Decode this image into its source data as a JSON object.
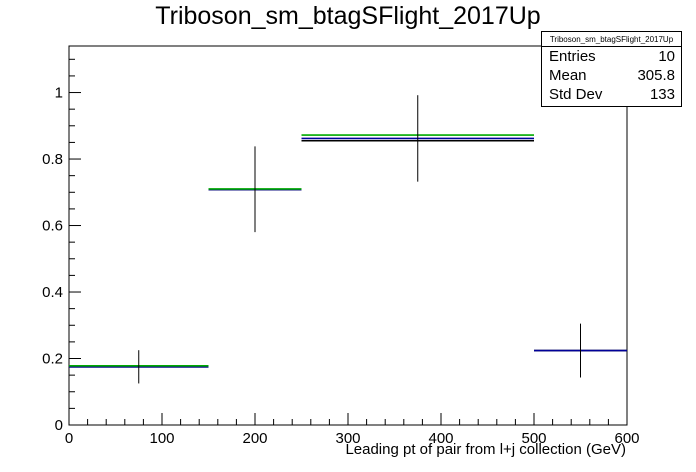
{
  "chart_data": {
    "type": "histogram",
    "title": "Triboson_sm_btagSFlight_2017Up",
    "xlabel": "Leading pt of pair from l+j collection (GeV)",
    "ylabel": "",
    "xlim": [
      0,
      600
    ],
    "ylim": [
      0,
      1.14
    ],
    "xticks": [
      0,
      100,
      200,
      300,
      400,
      500,
      600
    ],
    "yticks": [
      0,
      0.2,
      0.4,
      0.6,
      0.8,
      1
    ],
    "grid": false,
    "bins": [
      {
        "xlow": 0,
        "xhigh": 150,
        "x": 75,
        "value": 0.175,
        "err_low": 0.125,
        "err_high": 0.225
      },
      {
        "xlow": 150,
        "xhigh": 250,
        "x": 200,
        "value": 0.708,
        "err_low": 0.58,
        "err_high": 0.838
      },
      {
        "xlow": 250,
        "xhigh": 500,
        "x": 375,
        "value": 0.862,
        "err_low": 0.732,
        "err_high": 0.992
      },
      {
        "xlow": 500,
        "xhigh": 600,
        "x": 550,
        "value": 0.224,
        "err_low": 0.143,
        "err_high": 0.305
      }
    ],
    "series": [
      {
        "name": "",
        "color": "#000000",
        "values": [
          0.175,
          0.708,
          0.855,
          0.224
        ]
      },
      {
        "name": "",
        "color": "#000099",
        "values": [
          0.175,
          0.708,
          0.862,
          0.224
        ]
      },
      {
        "name": "",
        "color": "#00aa00",
        "values": [
          0.178,
          0.71,
          0.872,
          null
        ]
      }
    ],
    "stats_box": {
      "title": "Triboson_sm_btagSFlight_2017Up",
      "entries_label": "Entries",
      "entries": "10",
      "mean_label": "Mean",
      "mean": "305.8",
      "stddev_label": "Std Dev",
      "stddev": "133"
    }
  }
}
